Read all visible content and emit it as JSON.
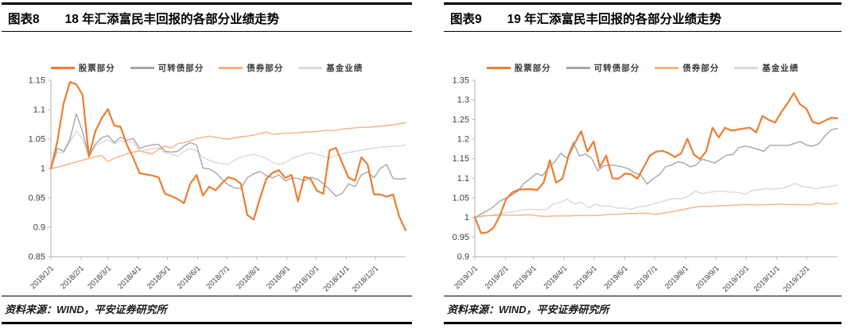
{
  "source_note": "资料来源：WIND，平安证券研究所",
  "colors": {
    "axis": "#BFBFBF",
    "tick_text": "#404040",
    "title_text": "#000000",
    "stock": "#ED7D31",
    "convertible": "#A6A6A6",
    "bond": "#F6B183",
    "fund": "#D9D9D9"
  },
  "panels": [
    {
      "label": "图表8",
      "title": "18 年汇添富民丰回报的各部分业绩走势"
    },
    {
      "label": "图表9",
      "title": "19 年汇添富民丰回报的各部分业绩走势"
    }
  ],
  "chart_data": [
    {
      "type": "line",
      "title": "18年汇添富民丰回报的各部分业绩走势",
      "ylim": [
        0.85,
        1.15
      ],
      "y_ticks": [
        0.85,
        0.9,
        0.95,
        1,
        1.05,
        1.1,
        1.15
      ],
      "x_tick_labels": [
        "2018/1/1",
        "2018/2/1",
        "2018/3/1",
        "2018/4/1",
        "2018/5/1",
        "2018/6/1",
        "2018/7/1",
        "2018/8/1",
        "2018/9/1",
        "2018/10/1",
        "2018/11/1",
        "2018/12/1"
      ],
      "grid": false,
      "legend_position": "top",
      "series": [
        {
          "key": "stock",
          "name": "股票部分",
          "color": "#ED7D31",
          "width": 2.2,
          "values": [
            1.0,
            1.045,
            1.11,
            1.147,
            1.143,
            1.125,
            1.02,
            1.063,
            1.085,
            1.101,
            1.073,
            1.071,
            1.04,
            1.018,
            0.992,
            0.99,
            0.988,
            0.985,
            0.957,
            0.953,
            0.948,
            0.941,
            0.974,
            0.989,
            0.954,
            0.969,
            0.963,
            0.975,
            0.985,
            0.982,
            0.974,
            0.921,
            0.913,
            0.949,
            0.982,
            0.993,
            0.997,
            0.984,
            0.989,
            0.944,
            0.986,
            0.982,
            0.962,
            0.957,
            1.031,
            1.035,
            1.009,
            0.984,
            0.979,
            1.019,
            1.007,
            0.956,
            0.956,
            0.952,
            0.956,
            0.918,
            0.895
          ]
        },
        {
          "key": "convertible",
          "name": "可转债部分",
          "color": "#A6A6A6",
          "width": 1.4,
          "values": [
            1.0,
            1.034,
            1.029,
            1.049,
            1.093,
            1.063,
            1.02,
            1.041,
            1.052,
            1.056,
            1.044,
            1.053,
            1.048,
            1.051,
            1.034,
            1.038,
            1.04,
            1.041,
            1.029,
            1.028,
            1.029,
            1.038,
            1.044,
            1.04,
            1.001,
            0.999,
            0.993,
            0.982,
            0.972,
            0.967,
            0.966,
            0.984,
            0.991,
            0.995,
            0.988,
            0.984,
            0.989,
            0.979,
            0.984,
            0.983,
            0.979,
            0.985,
            0.982,
            0.974,
            0.964,
            0.953,
            0.958,
            0.974,
            0.969,
            0.989,
            0.994,
            0.984,
            1.0,
            1.007,
            0.983,
            0.982,
            0.983
          ]
        },
        {
          "key": "bond",
          "name": "债券部分",
          "color": "#F6B183",
          "width": 1.4,
          "values": [
            1.0,
            1.002,
            1.005,
            1.008,
            1.011,
            1.014,
            1.017,
            1.02,
            1.022,
            1.012,
            1.017,
            1.021,
            1.025,
            1.028,
            1.03,
            1.027,
            1.025,
            1.032,
            1.038,
            1.035,
            1.042,
            1.044,
            1.047,
            1.051,
            1.053,
            1.055,
            1.053,
            1.051,
            1.05,
            1.052,
            1.054,
            1.055,
            1.057,
            1.059,
            1.062,
            1.058,
            1.059,
            1.06,
            1.06,
            1.061,
            1.062,
            1.062,
            1.063,
            1.064,
            1.065,
            1.065,
            1.067,
            1.068,
            1.069,
            1.07,
            1.07,
            1.071,
            1.072,
            1.073,
            1.074,
            1.076,
            1.078
          ]
        },
        {
          "key": "fund",
          "name": "基金业绩",
          "color": "#D9D9D9",
          "width": 1.4,
          "values": [
            1.0,
            1.028,
            1.026,
            1.045,
            1.064,
            1.05,
            1.02,
            1.038,
            1.044,
            1.048,
            1.042,
            1.047,
            1.044,
            1.045,
            1.03,
            1.031,
            1.034,
            1.035,
            1.027,
            1.024,
            1.021,
            1.029,
            1.034,
            1.03,
            1.019,
            1.014,
            1.01,
            1.008,
            1.007,
            1.014,
            1.019,
            1.022,
            1.024,
            1.021,
            1.017,
            1.01,
            1.007,
            1.01,
            1.017,
            1.021,
            1.024,
            1.027,
            1.024,
            1.021,
            1.018,
            1.022,
            1.025,
            1.027,
            1.029,
            1.031,
            1.033,
            1.035,
            1.036,
            1.037,
            1.038,
            1.038,
            1.04
          ]
        }
      ]
    },
    {
      "type": "line",
      "title": "19年汇添富民丰回报的各部分业绩走势",
      "ylim": [
        0.9,
        1.35
      ],
      "y_ticks": [
        0.9,
        0.95,
        1,
        1.05,
        1.1,
        1.15,
        1.2,
        1.25,
        1.3,
        1.35
      ],
      "x_tick_labels": [
        "2019/1/1",
        "2019/2/1",
        "2019/3/1",
        "2019/4/1",
        "2019/5/1",
        "2019/6/1",
        "2019/7/1",
        "2019/8/1",
        "2019/9/1",
        "2019/10/1",
        "2019/11/1",
        "2019/12/1"
      ],
      "grid": false,
      "legend_position": "top",
      "series": [
        {
          "key": "stock",
          "name": "股票部分",
          "color": "#ED7D31",
          "width": 2.2,
          "values": [
            1.0,
            0.96,
            0.962,
            0.974,
            1.004,
            1.047,
            1.064,
            1.071,
            1.072,
            1.072,
            1.07,
            1.089,
            1.146,
            1.089,
            1.099,
            1.158,
            1.19,
            1.22,
            1.168,
            1.194,
            1.128,
            1.158,
            1.1,
            1.099,
            1.112,
            1.11,
            1.099,
            1.128,
            1.158,
            1.168,
            1.17,
            1.164,
            1.154,
            1.164,
            1.201,
            1.161,
            1.149,
            1.169,
            1.229,
            1.204,
            1.229,
            1.222,
            1.224,
            1.227,
            1.229,
            1.217,
            1.259,
            1.249,
            1.242,
            1.268,
            1.291,
            1.317,
            1.289,
            1.278,
            1.244,
            1.239,
            1.247,
            1.254,
            1.253
          ]
        },
        {
          "key": "convertible",
          "name": "可转债部分",
          "color": "#A6A6A6",
          "width": 1.4,
          "values": [
            1.0,
            1.009,
            1.017,
            1.027,
            1.041,
            1.049,
            1.057,
            1.067,
            1.087,
            1.099,
            1.112,
            1.107,
            1.127,
            1.142,
            1.164,
            1.151,
            1.192,
            1.157,
            1.162,
            1.151,
            1.119,
            1.132,
            1.134,
            1.132,
            1.129,
            1.124,
            1.114,
            1.109,
            1.085,
            1.099,
            1.109,
            1.129,
            1.134,
            1.142,
            1.139,
            1.129,
            1.134,
            1.149,
            1.144,
            1.139,
            1.149,
            1.159,
            1.161,
            1.179,
            1.182,
            1.179,
            1.174,
            1.169,
            1.184,
            1.184,
            1.184,
            1.184,
            1.189,
            1.194,
            1.184,
            1.182,
            1.189,
            1.209,
            1.224,
            1.227
          ]
        },
        {
          "key": "bond",
          "name": "债券部分",
          "color": "#F6B183",
          "width": 1.4,
          "values": [
            1.0,
            1.004,
            1.005,
            1.005,
            1.006,
            1.006,
            1.006,
            1.006,
            1.007,
            1.005,
            1.003,
            1.003,
            1.004,
            1.004,
            1.004,
            1.005,
            1.005,
            1.005,
            1.005,
            1.006,
            1.008,
            1.008,
            1.009,
            1.01,
            1.01,
            1.011,
            1.01,
            1.008,
            1.011,
            1.014,
            1.017,
            1.02,
            1.024,
            1.027,
            1.029,
            1.028,
            1.03,
            1.03,
            1.031,
            1.032,
            1.033,
            1.033,
            1.032,
            1.033,
            1.033,
            1.034,
            1.034,
            1.033,
            1.033,
            1.033,
            1.032,
            1.037,
            1.034,
            1.034,
            1.036
          ]
        },
        {
          "key": "fund",
          "name": "基金业绩",
          "color": "#D9D9D9",
          "width": 1.4,
          "values": [
            1.0,
            1.002,
            1.005,
            1.008,
            1.011,
            1.014,
            1.017,
            1.02,
            1.021,
            1.02,
            1.02,
            1.034,
            1.039,
            1.047,
            1.034,
            1.039,
            1.024,
            1.034,
            1.029,
            1.029,
            1.024,
            1.024,
            1.021,
            1.027,
            1.029,
            1.034,
            1.039,
            1.044,
            1.049,
            1.047,
            1.054,
            1.067,
            1.061,
            1.064,
            1.067,
            1.067,
            1.064,
            1.064,
            1.059,
            1.069,
            1.071,
            1.074,
            1.072,
            1.074,
            1.079,
            1.087,
            1.079,
            1.077,
            1.074,
            1.077,
            1.079,
            1.082
          ]
        }
      ]
    }
  ]
}
